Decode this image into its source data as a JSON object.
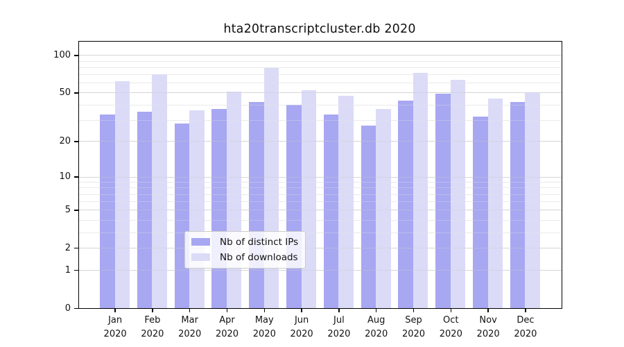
{
  "chart_data": {
    "type": "bar",
    "title": "hta20transcriptcluster.db 2020",
    "categories": [
      "Jan",
      "Feb",
      "Mar",
      "Apr",
      "May",
      "Jun",
      "Jul",
      "Aug",
      "Sep",
      "Oct",
      "Nov",
      "Dec"
    ],
    "x_tick_second_line": "2020",
    "series": [
      {
        "name": "Nb of distinct IPs",
        "color": "#a7a7f2",
        "values": [
          33,
          35,
          28,
          37,
          42,
          40,
          33,
          27,
          43,
          49,
          32,
          42
        ]
      },
      {
        "name": "Nb of downloads",
        "color": "#dbdbf8",
        "values": [
          62,
          70,
          36,
          51,
          79,
          52,
          47,
          37,
          72,
          63,
          45,
          50
        ]
      }
    ],
    "yscale": "log1p",
    "ylim": [
      0,
      128
    ],
    "yticks": [
      0,
      1,
      2,
      5,
      10,
      20,
      50,
      100
    ],
    "minor_yticks": [
      3,
      4,
      6,
      7,
      8,
      9,
      30,
      40,
      60,
      70,
      80,
      90
    ],
    "grid": "horizontal",
    "legend_position": "bottom-center",
    "axis_color": "#000000",
    "text_color": "#111111",
    "background": "#ffffff"
  }
}
